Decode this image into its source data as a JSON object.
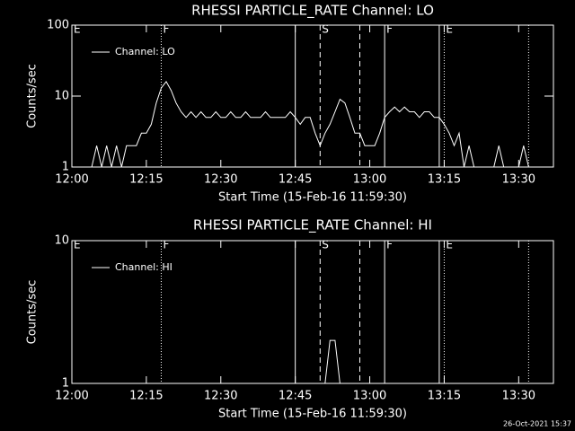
{
  "chart_data": [
    {
      "type": "line",
      "title": "RHESSI PARTICLE_RATE Channel: LO",
      "x_label": "Start Time (15-Feb-16 11:59:30)",
      "y_label": "Counts/sec",
      "log_y": true,
      "xlim": [
        "12:00",
        "13:37"
      ],
      "ylim": [
        1,
        100
      ],
      "xticks": [
        "12:00",
        "12:15",
        "12:30",
        "12:45",
        "13:00",
        "13:15",
        "13:30"
      ],
      "yticks": [
        1,
        10,
        100
      ],
      "legend": "top-left",
      "x": [
        "12:04",
        "12:05",
        "12:06",
        "12:07",
        "12:08",
        "12:09",
        "12:10",
        "12:11",
        "12:12",
        "12:13",
        "12:14",
        "12:15",
        "12:16",
        "12:17",
        "12:18",
        "12:19",
        "12:20",
        "12:21",
        "12:22",
        "12:23",
        "12:24",
        "12:25",
        "12:26",
        "12:27",
        "12:28",
        "12:29",
        "12:30",
        "12:31",
        "12:32",
        "12:33",
        "12:34",
        "12:35",
        "12:36",
        "12:37",
        "12:38",
        "12:39",
        "12:40",
        "12:41",
        "12:42",
        "12:43",
        "12:44",
        "12:45",
        "12:46",
        "12:47",
        "12:48",
        "12:49",
        "12:50",
        "12:51",
        "12:52",
        "12:53",
        "12:54",
        "12:55",
        "12:56",
        "12:57",
        "12:58",
        "12:59",
        "13:00",
        "13:01",
        "13:02",
        "13:03",
        "13:04",
        "13:05",
        "13:06",
        "13:07",
        "13:08",
        "13:09",
        "13:10",
        "13:11",
        "13:12",
        "13:13",
        "13:14",
        "13:15",
        "13:16",
        "13:17",
        "13:18",
        "13:19",
        "13:20",
        "13:21",
        "13:22",
        "13:25",
        "13:26",
        "13:27",
        "13:28",
        "13:30",
        "13:31",
        "13:32"
      ],
      "series": [
        {
          "name": "Channel: LO",
          "color": "#ffffff",
          "values": [
            1,
            2,
            1,
            2,
            1,
            2,
            1,
            2,
            2,
            2,
            3,
            3,
            4,
            8,
            13,
            16,
            12,
            8,
            6,
            5,
            6,
            5,
            6,
            5,
            5,
            6,
            5,
            5,
            6,
            5,
            5,
            6,
            5,
            5,
            5,
            6,
            5,
            5,
            5,
            5,
            6,
            5,
            4,
            5,
            5,
            3,
            2,
            3,
            4,
            6,
            9,
            8,
            5,
            3,
            3,
            2,
            2,
            2,
            3,
            5,
            6,
            7,
            6,
            7,
            6,
            6,
            5,
            6,
            6,
            5,
            5,
            4,
            3,
            2,
            3,
            1,
            2,
            1,
            null,
            1,
            2,
            1,
            null,
            1,
            2,
            1
          ]
        }
      ],
      "markers": [
        {
          "x": "12:18",
          "style": "dotted"
        },
        {
          "x": "12:45",
          "style": "solid"
        },
        {
          "x": "12:50",
          "style": "dashed"
        },
        {
          "x": "12:58",
          "style": "dashed"
        },
        {
          "x": "13:03",
          "style": "solid"
        },
        {
          "x": "13:14",
          "style": "solid"
        },
        {
          "x": "13:15",
          "style": "dotted"
        },
        {
          "x": "13:32",
          "style": "dotted"
        }
      ],
      "annotations": [
        {
          "x": "12:00",
          "text": "E"
        },
        {
          "x": "12:18",
          "text": "F"
        },
        {
          "x": "12:50",
          "text": "S"
        },
        {
          "x": "13:03",
          "text": "F"
        },
        {
          "x": "13:15",
          "text": "E"
        }
      ]
    },
    {
      "type": "line",
      "title": "RHESSI PARTICLE_RATE Channel: HI",
      "x_label": "Start Time (15-Feb-16 11:59:30)",
      "y_label": "Counts/sec",
      "log_y": true,
      "xlim": [
        "12:00",
        "13:37"
      ],
      "ylim": [
        1,
        10
      ],
      "xticks": [
        "12:00",
        "12:15",
        "12:30",
        "12:45",
        "13:00",
        "13:15",
        "13:30"
      ],
      "yticks": [
        1,
        10
      ],
      "legend": "top-left",
      "x": [
        "12:51",
        "12:52",
        "12:53",
        "12:54"
      ],
      "series": [
        {
          "name": "Channel: HI",
          "color": "#ffffff",
          "values": [
            1,
            2,
            2,
            1
          ]
        }
      ],
      "markers": [
        {
          "x": "12:18",
          "style": "dotted"
        },
        {
          "x": "12:45",
          "style": "solid"
        },
        {
          "x": "12:50",
          "style": "dashed"
        },
        {
          "x": "12:58",
          "style": "dashed"
        },
        {
          "x": "13:03",
          "style": "solid"
        },
        {
          "x": "13:14",
          "style": "solid"
        },
        {
          "x": "13:15",
          "style": "dotted"
        },
        {
          "x": "13:32",
          "style": "dotted"
        }
      ],
      "annotations": [
        {
          "x": "12:00",
          "text": "E"
        },
        {
          "x": "12:18",
          "text": "F"
        },
        {
          "x": "12:50",
          "text": "S"
        },
        {
          "x": "13:03",
          "text": "F"
        },
        {
          "x": "13:15",
          "text": "E"
        }
      ]
    }
  ],
  "footer": {
    "text": "26-Oct-2021 15:37"
  }
}
